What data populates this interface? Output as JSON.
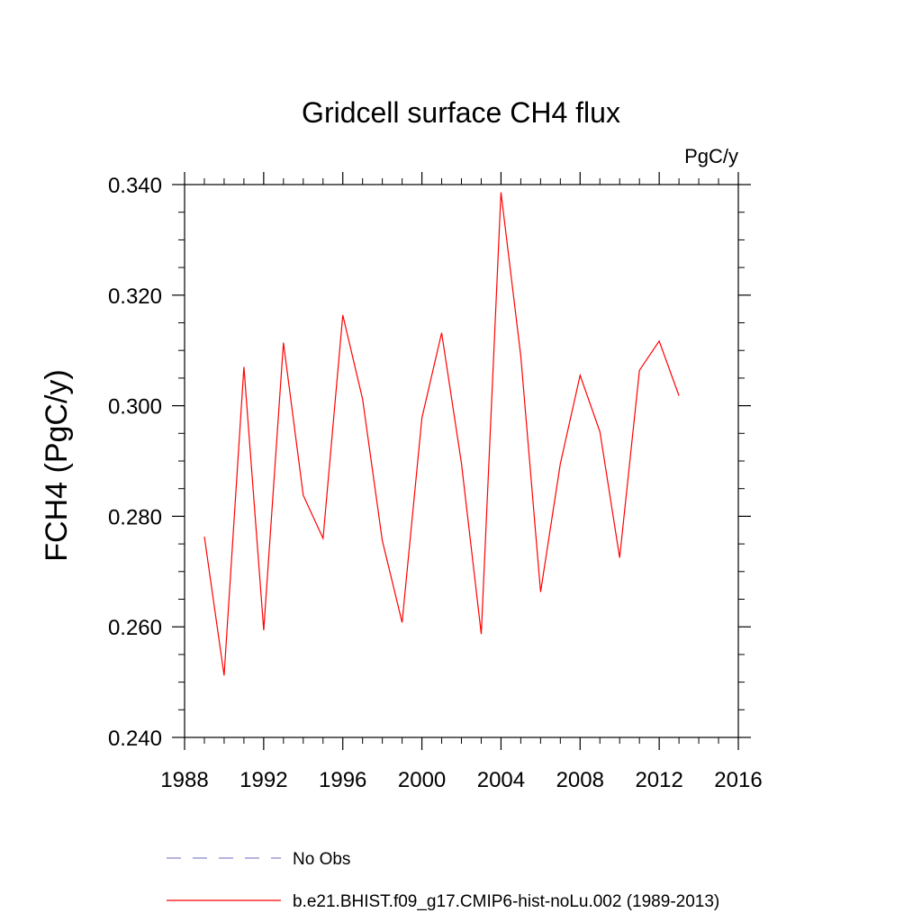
{
  "chart_data": {
    "type": "line",
    "title": "Gridcell surface CH4 flux",
    "units_label": "PgC/y",
    "ylabel": "FCH4  (PgC/y)",
    "xlabel": "",
    "xlim": [
      1988,
      2016
    ],
    "ylim": [
      0.24,
      0.34
    ],
    "x_ticks": [
      1988,
      1992,
      1996,
      2000,
      2004,
      2008,
      2012,
      2016
    ],
    "y_ticks": [
      "0.240",
      "0.260",
      "0.280",
      "0.300",
      "0.320",
      "0.340"
    ],
    "x_minor_step": 1,
    "y_minor_step": 0.005,
    "grid": false,
    "legend_position": "bottom",
    "series": [
      {
        "name": "b.e21.BHIST.f09_g17.CMIP6-hist-noLu.002 (1989-2013)",
        "color": "#ff0000",
        "style": "solid",
        "x": [
          1989,
          1990,
          1991,
          1992,
          1993,
          1994,
          1995,
          1996,
          1997,
          1998,
          1999,
          2000,
          2001,
          2002,
          2003,
          2004,
          2005,
          2006,
          2007,
          2008,
          2009,
          2010,
          2011,
          2012,
          2013
        ],
        "values": [
          0.2763,
          0.2512,
          0.307,
          0.2594,
          0.3114,
          0.2838,
          0.276,
          0.3164,
          0.3012,
          0.2756,
          0.2608,
          0.2978,
          0.3132,
          0.2896,
          0.2587,
          0.3386,
          0.309,
          0.2663,
          0.2895,
          0.3055,
          0.2953,
          0.2725,
          0.3064,
          0.3117,
          0.3018
        ]
      }
    ],
    "legend": [
      {
        "label": "No Obs",
        "color": "#8888cc",
        "style": "dashed"
      },
      {
        "label": "b.e21.BHIST.f09_g17.CMIP6-hist-noLu.002 (1989-2013)",
        "color": "#ff0000",
        "style": "solid"
      }
    ]
  }
}
